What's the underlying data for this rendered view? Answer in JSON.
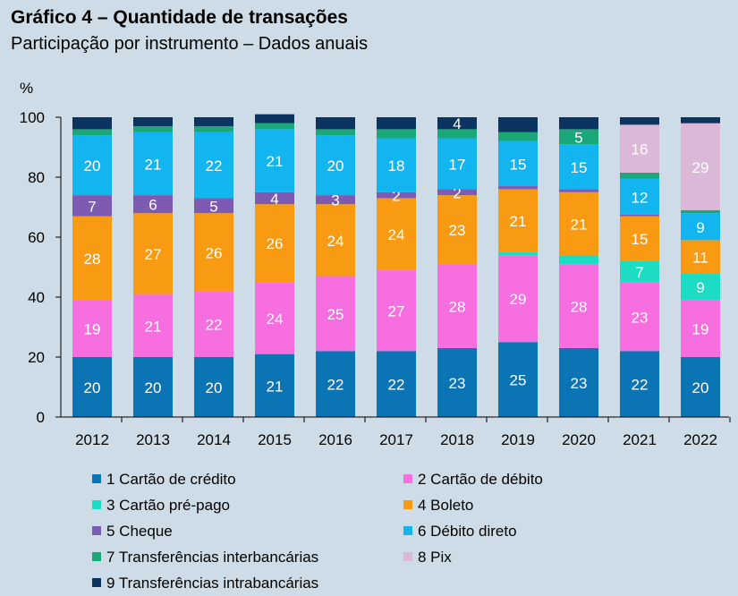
{
  "header": {
    "title": "Gráfico 4 – Quantidade de transações",
    "subtitle": "Participação por instrumento – Dados anuais"
  },
  "chart_data": {
    "type": "bar",
    "stacked": true,
    "title": "Gráfico 4 – Quantidade de transações",
    "subtitle": "Participação por instrumento – Dados anuais",
    "ylabel": "%",
    "xlabel": "",
    "ylim": [
      0,
      100
    ],
    "yticks": [
      0,
      20,
      40,
      60,
      80,
      100
    ],
    "grid": false,
    "legend_position": "bottom",
    "categories": [
      "2012",
      "2013",
      "2014",
      "2015",
      "2016",
      "2017",
      "2018",
      "2019",
      "2020",
      "2021",
      "2022"
    ],
    "series": [
      {
        "name": "1 Cartão de crédito",
        "color": "#0b74b5",
        "values": [
          20,
          20,
          20,
          21,
          22,
          22,
          23,
          25,
          23,
          22,
          20
        ],
        "labels": [
          "20",
          "20",
          "20",
          "21",
          "22",
          "22",
          "23",
          "25",
          "23",
          "22",
          "20"
        ]
      },
      {
        "name": "2 Cartão de débito",
        "color": "#f76ee0",
        "values": [
          19,
          21,
          22,
          24,
          25,
          27,
          28,
          29,
          28,
          23,
          19
        ],
        "labels": [
          "19",
          "21",
          "22",
          "24",
          "25",
          "27",
          "28",
          "29",
          "28",
          "23",
          "19"
        ]
      },
      {
        "name": "3 Cartão pré-pago",
        "color": "#1ddcc4",
        "values": [
          0,
          0,
          0,
          0,
          0,
          0,
          0,
          1,
          3,
          7,
          9
        ],
        "labels": [
          "",
          "",
          "",
          "",
          "",
          "",
          "",
          "",
          "",
          "7",
          "9"
        ]
      },
      {
        "name": "4 Boleto",
        "color": "#f99b12",
        "values": [
          28,
          27,
          26,
          26,
          24,
          24,
          23,
          21,
          21,
          15,
          11
        ],
        "labels": [
          "28",
          "27",
          "26",
          "26",
          "24",
          "24",
          "23",
          "21",
          "21",
          "15",
          "11"
        ]
      },
      {
        "name": "5 Cheque",
        "color": "#7d5bb2",
        "values": [
          7,
          6,
          5,
          4,
          3,
          2,
          2,
          1,
          1,
          0.5,
          0
        ],
        "labels": [
          "7",
          "6",
          "5",
          "4",
          "3",
          "2",
          "2",
          "",
          "",
          "",
          ""
        ]
      },
      {
        "name": "6 Débito direto",
        "color": "#12b5f0",
        "values": [
          20,
          21,
          22,
          21,
          20,
          18,
          17,
          15,
          15,
          12,
          9
        ],
        "labels": [
          "20",
          "21",
          "22",
          "21",
          "20",
          "18",
          "17",
          "15",
          "15",
          "12",
          "9"
        ]
      },
      {
        "name": "7 Transferências interbancárias",
        "color": "#1aa878",
        "values": [
          2,
          2,
          2,
          2,
          2,
          3,
          3,
          3,
          5,
          2,
          1
        ],
        "labels": [
          "",
          "",
          "",
          "",
          "",
          "",
          "",
          "",
          "5",
          "",
          ""
        ]
      },
      {
        "name": "8 Pix",
        "color": "#dbb8d8",
        "values": [
          0,
          0,
          0,
          0,
          0,
          0,
          0,
          0,
          0,
          16,
          29
        ],
        "labels": [
          "",
          "",
          "",
          "",
          "",
          "",
          "",
          "",
          "",
          "16",
          "29"
        ]
      },
      {
        "name": "9 Transferências intrabancárias",
        "color": "#0b3560",
        "values": [
          4,
          3,
          3,
          3,
          4,
          4,
          4,
          5,
          4,
          2.5,
          2
        ],
        "labels": [
          "",
          "",
          "",
          "",
          "",
          "",
          "4",
          "",
          "",
          "",
          ""
        ]
      }
    ]
  }
}
